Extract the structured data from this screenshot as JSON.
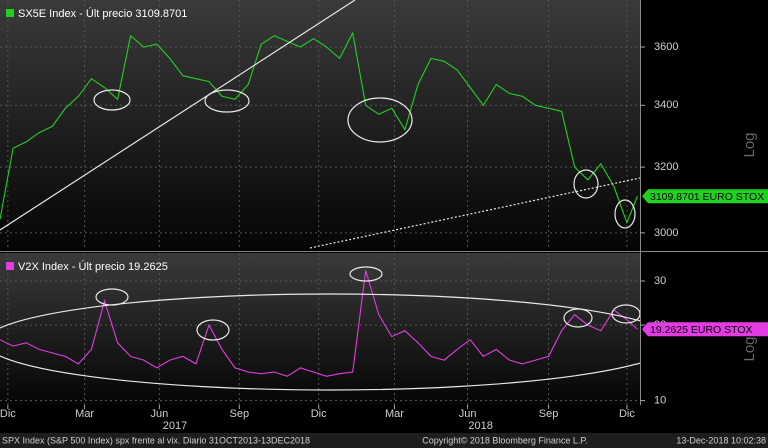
{
  "chart_data": [
    {
      "type": "line",
      "log": true,
      "grid": true,
      "series": [
        {
          "name": "SX5E Index - Últ precio 3109.8701",
          "color": "#22d022",
          "values": [
            3040,
            3260,
            3280,
            3310,
            3330,
            3390,
            3430,
            3490,
            3460,
            3420,
            3640,
            3600,
            3610,
            3560,
            3500,
            3490,
            3480,
            3430,
            3420,
            3470,
            3610,
            3640,
            3620,
            3600,
            3630,
            3600,
            3560,
            3650,
            3400,
            3370,
            3390,
            3320,
            3470,
            3560,
            3550,
            3520,
            3460,
            3400,
            3470,
            3440,
            3430,
            3400,
            3390,
            3380,
            3200,
            3160,
            3210,
            3140,
            3030,
            3109.8701
          ]
        }
      ],
      "x": [
        0,
        0.5,
        1,
        1.5,
        2,
        2.5,
        3,
        3.5,
        4,
        4.5,
        5,
        5.5,
        6,
        6.5,
        7,
        7.5,
        8,
        8.5,
        9,
        9.5,
        10,
        10.5,
        11,
        11.5,
        12,
        12.5,
        13,
        13.5,
        14,
        14.5,
        15,
        15.5,
        16,
        16.5,
        17,
        17.5,
        18,
        18.5,
        19,
        19.5,
        20,
        20.5,
        21,
        21.5,
        22,
        22.5,
        23,
        23.5,
        24,
        24.4
      ],
      "xlim": [
        0,
        24.5
      ],
      "ylim": [
        2950,
        3770
      ],
      "yticks": [
        3000,
        3200,
        3400,
        3600
      ],
      "axis_label": "Log",
      "last_label": "3109.8701 EURO STOX"
    },
    {
      "type": "line",
      "log": true,
      "grid": true,
      "series": [
        {
          "name": "V2X Index - Últ precio 19.2625",
          "color": "#e23ce2",
          "values": [
            17.5,
            16.5,
            17,
            16,
            15.5,
            15,
            14,
            16,
            25,
            17,
            15,
            14.5,
            13.5,
            14.5,
            15,
            14,
            20,
            16,
            13.5,
            13,
            12.8,
            13,
            12.5,
            13.5,
            13,
            12.5,
            12.8,
            13,
            33,
            22,
            18,
            19,
            17,
            15,
            14.5,
            16,
            17.5,
            15,
            16,
            14.5,
            14,
            14.5,
            15,
            19,
            22,
            20,
            19,
            23,
            21,
            19.2625
          ]
        }
      ],
      "x": [
        0,
        0.5,
        1,
        1.5,
        2,
        2.5,
        3,
        3.5,
        4,
        4.5,
        5,
        5.5,
        6,
        6.5,
        7,
        7.5,
        8,
        8.5,
        9,
        9.5,
        10,
        10.5,
        11,
        11.5,
        12,
        12.5,
        13,
        13.5,
        14,
        14.5,
        15,
        15.5,
        16,
        16.5,
        17,
        17.5,
        18,
        18.5,
        19,
        19.5,
        20,
        20.5,
        21,
        21.5,
        22,
        22.5,
        23,
        23.5,
        24,
        24.4
      ],
      "xlim": [
        0,
        24.5
      ],
      "ylim": [
        9.6,
        38.8
      ],
      "yticks": [
        10,
        20,
        30
      ],
      "xticks": [
        {
          "value": 0.3,
          "label": "Dic"
        },
        {
          "value": 3.24,
          "label": "Mar"
        },
        {
          "value": 6.1,
          "label": "Jun"
        },
        {
          "value": 9.16,
          "label": "Sep"
        },
        {
          "value": 12.2,
          "label": "Dic"
        },
        {
          "value": 15.1,
          "label": "Mar"
        },
        {
          "value": 17.9,
          "label": "Jun"
        },
        {
          "value": 21.0,
          "label": "Sep"
        },
        {
          "value": 24.0,
          "label": "Dic"
        }
      ],
      "year_labels": [
        {
          "value": 6.7,
          "label": "2017"
        },
        {
          "value": 18.4,
          "label": "2018"
        }
      ],
      "axis_label": "Log",
      "last_label": "19.2625 EURO STOX"
    }
  ],
  "footer": {
    "left": "SPX Index (S&P 500 Index) spx frente al vix.  Diario 31OCT2013-13DEC2018",
    "center": "Copyright© 2018 Bloomberg Finance L.P.",
    "right": "13-Dec-2018 10:02:38"
  }
}
